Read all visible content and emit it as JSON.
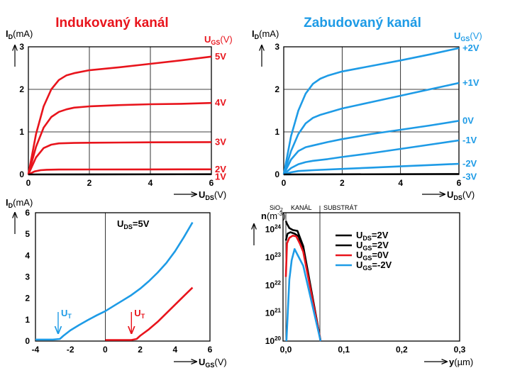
{
  "colors": {
    "red": "#e8141c",
    "blue": "#1e9be6",
    "black": "#000000"
  },
  "chart_data": [
    {
      "type": "line",
      "title": "Indukovaný kanál",
      "ylabel_main": "I",
      "ylabel_sub": "D",
      "ylabel_unit": "(mA)",
      "xlabel_main": "U",
      "xlabel_sub": "DS",
      "xlabel_unit": "(V)",
      "legend_main": "U",
      "legend_sub": "GS",
      "legend_unit": "(V)",
      "xlim": [
        0,
        6
      ],
      "ylim": [
        0,
        3
      ],
      "xticks": [
        "0",
        "2",
        "4",
        "6"
      ],
      "yticks": [
        "0",
        "1",
        "2",
        "3"
      ],
      "series": [
        {
          "name": "5V",
          "x": [
            0,
            0.25,
            0.5,
            0.75,
            1.0,
            1.25,
            1.5,
            2,
            3,
            4,
            5,
            6
          ],
          "y": [
            0,
            0.95,
            1.6,
            2.0,
            2.22,
            2.33,
            2.38,
            2.45,
            2.52,
            2.6,
            2.68,
            2.77
          ]
        },
        {
          "name": "4V",
          "x": [
            0,
            0.25,
            0.5,
            0.75,
            1.0,
            1.25,
            1.5,
            2,
            3,
            4,
            5,
            6
          ],
          "y": [
            0,
            0.65,
            1.1,
            1.35,
            1.47,
            1.53,
            1.57,
            1.6,
            1.63,
            1.65,
            1.66,
            1.68
          ]
        },
        {
          "name": "3V",
          "x": [
            0,
            0.25,
            0.5,
            0.75,
            1.0,
            1.5,
            2,
            3,
            4,
            5,
            6
          ],
          "y": [
            0,
            0.4,
            0.62,
            0.7,
            0.73,
            0.74,
            0.745,
            0.75,
            0.755,
            0.757,
            0.76
          ]
        },
        {
          "name": "2V",
          "x": [
            0,
            0.2,
            0.4,
            0.6,
            1,
            2,
            4,
            6
          ],
          "y": [
            0,
            0.07,
            0.1,
            0.11,
            0.115,
            0.117,
            0.118,
            0.12
          ]
        },
        {
          "name": "1V",
          "x": [
            0,
            6
          ],
          "y": [
            0,
            0.005
          ]
        }
      ]
    },
    {
      "type": "line",
      "title": "Zabudovaný kanál",
      "ylabel_main": "I",
      "ylabel_sub": "D",
      "ylabel_unit": "(mA)",
      "xlabel_main": "U",
      "xlabel_sub": "DS",
      "xlabel_unit": "(V)",
      "legend_main": "U",
      "legend_sub": "GS",
      "legend_unit": "(V)",
      "xlim": [
        0,
        6
      ],
      "ylim": [
        0,
        3
      ],
      "xticks": [
        "0",
        "2",
        "4",
        "6"
      ],
      "yticks": [
        "0",
        "1",
        "2",
        "3"
      ],
      "series": [
        {
          "name": "+2V",
          "x": [
            0,
            0.25,
            0.5,
            0.75,
            1.0,
            1.25,
            1.5,
            2,
            3,
            4,
            5,
            6
          ],
          "y": [
            0,
            0.9,
            1.5,
            1.9,
            2.13,
            2.25,
            2.32,
            2.42,
            2.55,
            2.68,
            2.82,
            2.97
          ]
        },
        {
          "name": "+1V",
          "x": [
            0,
            0.25,
            0.5,
            0.75,
            1.0,
            1.25,
            1.5,
            2,
            3,
            4,
            5,
            6
          ],
          "y": [
            0,
            0.55,
            0.95,
            1.2,
            1.33,
            1.4,
            1.45,
            1.55,
            1.7,
            1.85,
            2.0,
            2.15
          ]
        },
        {
          "name": "0V",
          "x": [
            0,
            0.25,
            0.5,
            0.75,
            1.0,
            1.5,
            2,
            3,
            4,
            5,
            6
          ],
          "y": [
            0,
            0.35,
            0.55,
            0.64,
            0.68,
            0.76,
            0.83,
            0.95,
            1.05,
            1.15,
            1.26
          ]
        },
        {
          "name": "-1V",
          "x": [
            0,
            0.25,
            0.5,
            0.75,
            1.0,
            1.5,
            2,
            3,
            4,
            5,
            6
          ],
          "y": [
            0,
            0.15,
            0.24,
            0.29,
            0.32,
            0.36,
            0.41,
            0.5,
            0.6,
            0.7,
            0.8
          ]
        },
        {
          "name": "-2V",
          "x": [
            0,
            0.25,
            0.5,
            1.0,
            2,
            3,
            4,
            5,
            6
          ],
          "y": [
            0,
            0.05,
            0.08,
            0.1,
            0.13,
            0.16,
            0.19,
            0.22,
            0.25
          ]
        },
        {
          "name": "-3V",
          "x": [
            0,
            6
          ],
          "y": [
            0,
            0.01
          ]
        }
      ]
    },
    {
      "type": "line",
      "ylabel_main": "I",
      "ylabel_sub": "D",
      "ylabel_unit": "(mA)",
      "xlabel_main": "U",
      "xlabel_sub": "GS",
      "xlabel_unit": "(V)",
      "xlim": [
        -4,
        6
      ],
      "ylim": [
        0,
        6
      ],
      "xticks": [
        "-4",
        "-2",
        "0",
        "2",
        "4",
        "6"
      ],
      "yticks": [
        "0",
        "1",
        "2",
        "3",
        "4",
        "5",
        "6"
      ],
      "annotation_main": "U",
      "annotation_sub": "DS",
      "annotation_text": "=5V",
      "threshold_labels": [
        {
          "main": "U",
          "sub": "T",
          "x": -2.7,
          "color": "blue"
        },
        {
          "main": "U",
          "sub": "T",
          "x": 1.5,
          "color": "red"
        }
      ],
      "series": [
        {
          "color": "blue",
          "x": [
            -4,
            -3,
            -2.6,
            -2.4,
            -2,
            -1.5,
            -1,
            -0.5,
            0,
            0.5,
            1,
            1.5,
            2,
            2.5,
            3,
            3.5,
            4,
            4.5,
            5
          ],
          "y": [
            0.07,
            0.07,
            0.1,
            0.25,
            0.5,
            0.75,
            0.98,
            1.2,
            1.4,
            1.65,
            1.9,
            2.15,
            2.45,
            2.8,
            3.2,
            3.65,
            4.2,
            4.85,
            5.55
          ]
        },
        {
          "color": "red",
          "x": [
            0,
            1.5,
            1.8,
            2,
            2.5,
            3,
            3.5,
            4,
            4.5,
            5
          ],
          "y": [
            0.05,
            0.05,
            0.1,
            0.25,
            0.55,
            0.9,
            1.3,
            1.7,
            2.1,
            2.5
          ]
        }
      ]
    },
    {
      "type": "line",
      "ylabel_main": "n",
      "ylabel_unit": "(m",
      "ylabel_sup": "-3",
      "ylabel_close": ")",
      "xlabel_main": "y",
      "xlabel_unit": "(µm)",
      "xlim": [
        0,
        0.3
      ],
      "ylog": true,
      "ylim_exp": [
        20,
        24.6
      ],
      "xticks": [
        "0,0",
        "0,1",
        "0,2",
        "0,3"
      ],
      "yticks_exp": [
        "20",
        "21",
        "22",
        "23",
        "24"
      ],
      "region_labels": {
        "oxide_main": "SiO",
        "oxide_sub": "2",
        "channel": "KANÁL",
        "substrate": "SUBSTRÁT"
      },
      "series": [
        {
          "name_main": "U",
          "name_sub": "DS",
          "name_rest": "=2V",
          "color": "black",
          "x": [
            0,
            0.002,
            0.006,
            0.012,
            0.02,
            0.03,
            0.06
          ],
          "y_exp": [
            24.3,
            24.2,
            24.05,
            23.98,
            23.95,
            23.4,
            20
          ]
        },
        {
          "name_main": "U",
          "name_sub": "GS",
          "name_rest": "=2V",
          "color": "black",
          "x": [
            0,
            0.003,
            0.008,
            0.015,
            0.022,
            0.03,
            0.06
          ],
          "y_exp": [
            23.6,
            23.85,
            23.9,
            23.85,
            23.75,
            23.3,
            20
          ]
        },
        {
          "name_main": "U",
          "name_sub": "GS",
          "name_rest": "=0V",
          "color": "red",
          "x": [
            0,
            0.002,
            0.006,
            0.012,
            0.018,
            0.024,
            0.03,
            0.06
          ],
          "y_exp": [
            22.3,
            23.5,
            23.7,
            23.78,
            23.75,
            23.5,
            23.2,
            20
          ]
        },
        {
          "name_main": "U",
          "name_sub": "GS",
          "name_rest": "=-2V",
          "color": "blue",
          "x": [
            0.001,
            0.006,
            0.01,
            0.015,
            0.02,
            0.025,
            0.03,
            0.06
          ],
          "y_exp": [
            20,
            22.2,
            22.9,
            23.3,
            23.1,
            22.9,
            22.7,
            20
          ]
        }
      ]
    }
  ]
}
